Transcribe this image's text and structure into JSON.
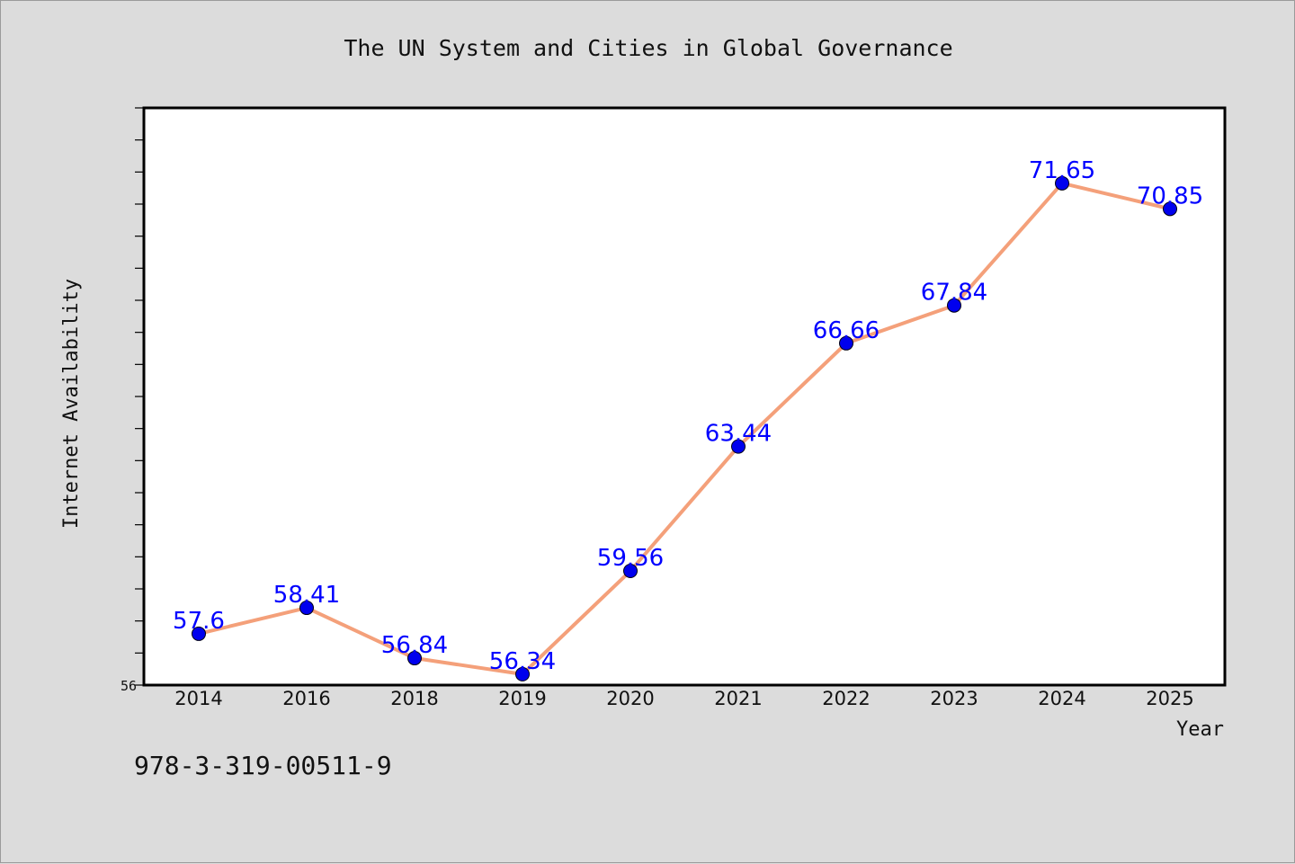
{
  "footer": {
    "isbn": "978-3-319-00511-9"
  },
  "chart_data": {
    "type": "line",
    "title": "The UN System and Cities in Global Governance",
    "xlabel": "Year",
    "ylabel": "Internet Availability",
    "categories": [
      "2014",
      "2016",
      "2018",
      "2019",
      "2020",
      "2021",
      "2022",
      "2023",
      "2024",
      "2025"
    ],
    "series": [
      {
        "values": [
          57.6,
          58.41,
          56.84,
          56.34,
          59.56,
          63.44,
          66.66,
          67.84,
          71.65,
          70.85
        ],
        "labels": [
          "57.6",
          "58.41",
          "56.84",
          "56.34",
          "59.56",
          "63.44",
          "66.66",
          "67.84",
          "71.65",
          "70.85"
        ],
        "line_color": "#f4a07a",
        "marker_color": "#0000ee",
        "label_color": "#0000ff"
      }
    ],
    "ylim": [
      56,
      74
    ],
    "y_tick_labels": [
      "56"
    ],
    "grid": false,
    "legend": "none",
    "colors": {
      "background": "#dcdcdc",
      "plot_background": "#ffffff",
      "axis": "#000000"
    }
  }
}
